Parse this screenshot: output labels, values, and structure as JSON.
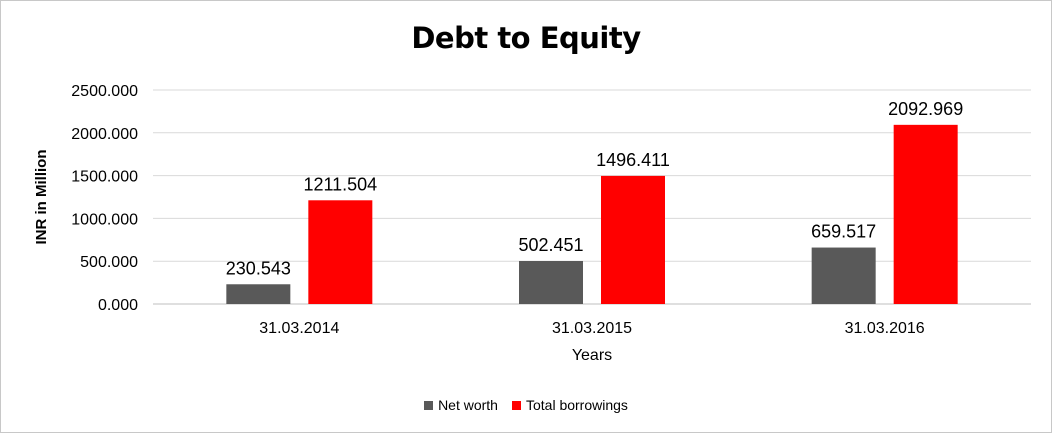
{
  "chart_data": {
    "type": "bar",
    "title": "Debt to Equity",
    "xlabel": "Years",
    "ylabel": "INR in Million",
    "categories": [
      "31.03.2014",
      "31.03.2015",
      "31.03.2016"
    ],
    "series": [
      {
        "name": "Net worth",
        "color": "#595959",
        "values": [
          230.543,
          502.451,
          659.517
        ],
        "labels": [
          "230.543",
          "502.451",
          "659.517"
        ]
      },
      {
        "name": "Total borrowings",
        "color": "#ff0000",
        "values": [
          1211.504,
          1496.411,
          2092.969
        ],
        "labels": [
          "1211.504",
          "1496.411",
          "2092.969"
        ]
      }
    ],
    "yticks": [
      "0.000",
      "500.000",
      "1000.000",
      "1500.000",
      "2000.000",
      "2500.000"
    ],
    "ylim": [
      0,
      2500
    ],
    "grid": true,
    "legend_position": "bottom"
  }
}
